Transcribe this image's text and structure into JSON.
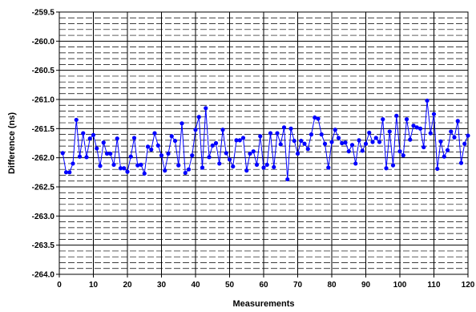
{
  "chart_data": {
    "type": "line",
    "title": "",
    "xlabel": "Measurements",
    "ylabel": "Difference (ns)",
    "xlim": [
      0,
      120
    ],
    "ylim": [
      -264.0,
      -259.5
    ],
    "x_ticks": [
      "0",
      "10",
      "20",
      "30",
      "40",
      "50",
      "60",
      "70",
      "80",
      "90",
      "100",
      "110",
      "120"
    ],
    "y_ticks": [
      "-259.5",
      "-260.0",
      "-260.5",
      "-261.0",
      "-261.5",
      "-262.0",
      "-262.5",
      "-263.0",
      "-263.5",
      "-264.0"
    ],
    "grid": true,
    "legend": "none",
    "series": [
      {
        "color": "#0000ff",
        "x": [
          1,
          2,
          3,
          4,
          5,
          6,
          7,
          8,
          9,
          10,
          11,
          12,
          13,
          14,
          15,
          16,
          17,
          18,
          19,
          20,
          21,
          22,
          23,
          24,
          25,
          26,
          27,
          28,
          29,
          30,
          31,
          32,
          33,
          34,
          35,
          36,
          37,
          38,
          39,
          40,
          41,
          42,
          43,
          44,
          45,
          46,
          47,
          48,
          49,
          50,
          51,
          52,
          53,
          54,
          55,
          56,
          57,
          58,
          59,
          60,
          61,
          62,
          63,
          64,
          65,
          66,
          67,
          68,
          69,
          70,
          71,
          72,
          73,
          74,
          75,
          76,
          77,
          78,
          79,
          80,
          81,
          82,
          83,
          84,
          85,
          86,
          87,
          88,
          89,
          90,
          91,
          92,
          93,
          94,
          95,
          96,
          97,
          98,
          99,
          100,
          101,
          102,
          103,
          104,
          105,
          106,
          107,
          108,
          109,
          110,
          111,
          112,
          113,
          114,
          115,
          116,
          117,
          118,
          119,
          120
        ],
        "y": [
          -261.92,
          -262.25,
          -262.25,
          -262.1,
          -261.35,
          -261.98,
          -261.58,
          -261.99,
          -261.67,
          -261.61,
          -261.84,
          -262.14,
          -261.74,
          -261.93,
          -261.93,
          -262.12,
          -261.67,
          -262.18,
          -262.18,
          -262.24,
          -261.98,
          -261.66,
          -262.13,
          -262.12,
          -262.27,
          -261.81,
          -261.86,
          -261.58,
          -261.79,
          -261.96,
          -262.22,
          -261.93,
          -261.63,
          -261.71,
          -262.13,
          -261.41,
          -262.26,
          -262.2,
          -261.96,
          -261.52,
          -261.3,
          -262.17,
          -261.15,
          -261.99,
          -261.79,
          -261.75,
          -262.1,
          -261.52,
          -261.92,
          -262.03,
          -262.15,
          -261.7,
          -261.7,
          -261.66,
          -262.22,
          -261.93,
          -261.89,
          -262.12,
          -261.63,
          -262.17,
          -262.12,
          -261.58,
          -262.16,
          -261.58,
          -261.77,
          -261.48,
          -262.37,
          -261.5,
          -261.71,
          -261.93,
          -261.71,
          -261.76,
          -261.85,
          -261.6,
          -261.31,
          -261.33,
          -261.6,
          -261.76,
          -262.17,
          -261.73,
          -261.52,
          -261.66,
          -261.75,
          -261.74,
          -261.89,
          -261.78,
          -262.1,
          -261.7,
          -261.88,
          -261.76,
          -261.57,
          -261.73,
          -261.66,
          -261.73,
          -261.34,
          -262.18,
          -261.55,
          -262.13,
          -261.28,
          -261.89,
          -261.96,
          -261.34,
          -261.69,
          -261.45,
          -261.48,
          -261.5,
          -261.82,
          -261.02,
          -261.58,
          -261.25,
          -262.19,
          -261.72,
          -261.98,
          -261.87,
          -261.55,
          -261.65,
          -261.37,
          -262.09,
          -261.76,
          -261.62
        ]
      }
    ]
  }
}
